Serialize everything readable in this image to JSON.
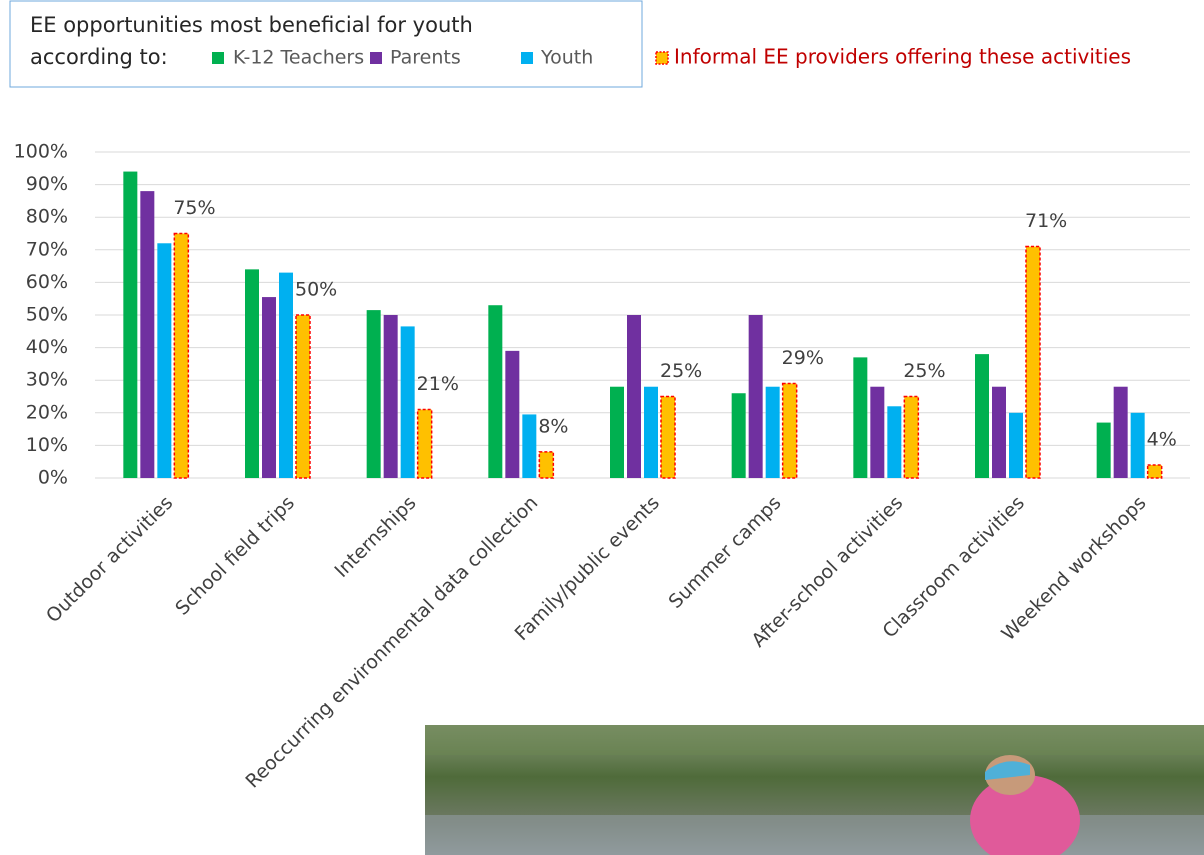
{
  "chart_data": {
    "type": "bar",
    "title": "EE opportunities most beneficial for youth",
    "legend_title": "according to:",
    "categories": [
      "Outdoor activities",
      "School field trips",
      "Internships",
      "Reoccurring environmental data collection",
      "Family/public events",
      "Summer camps",
      "After-school activities",
      "Classroom activities",
      "Weekend workshops"
    ],
    "series": [
      {
        "name": "K-12 Teachers",
        "color": "#00b050",
        "values": [
          94,
          64,
          51.5,
          53,
          28,
          26,
          37,
          38,
          17
        ]
      },
      {
        "name": "Parents",
        "color": "#7030a0",
        "values": [
          88,
          55.5,
          50,
          39,
          50,
          50,
          28,
          28,
          28
        ]
      },
      {
        "name": "Youth",
        "color": "#00b0f0",
        "values": [
          72,
          63,
          46.5,
          19.5,
          28,
          28,
          22,
          20,
          20
        ]
      },
      {
        "name": "Informal EE providers offering these activities",
        "color": "#ffc000",
        "border": "#ff0000",
        "values": [
          75,
          50,
          21,
          8,
          25,
          29,
          25,
          71,
          4
        ],
        "value_labels": [
          "75%",
          "50%",
          "21%",
          "8%",
          "25%",
          "29%",
          "25%",
          "71%",
          "4%"
        ]
      }
    ],
    "ylim": [
      0,
      100
    ],
    "yticks": [
      {
        "value": 0,
        "label": "0%"
      },
      {
        "value": 10,
        "label": "10%"
      },
      {
        "value": 20,
        "label": "20%"
      },
      {
        "value": 30,
        "label": "30%"
      },
      {
        "value": 40,
        "label": "40%"
      },
      {
        "value": 50,
        "label": "50%"
      },
      {
        "value": 60,
        "label": "60%"
      },
      {
        "value": 70,
        "label": "70%"
      },
      {
        "value": 80,
        "label": "80%"
      },
      {
        "value": 90,
        "label": "90%"
      },
      {
        "value": 100,
        "label": "100%"
      }
    ],
    "grid": true
  }
}
